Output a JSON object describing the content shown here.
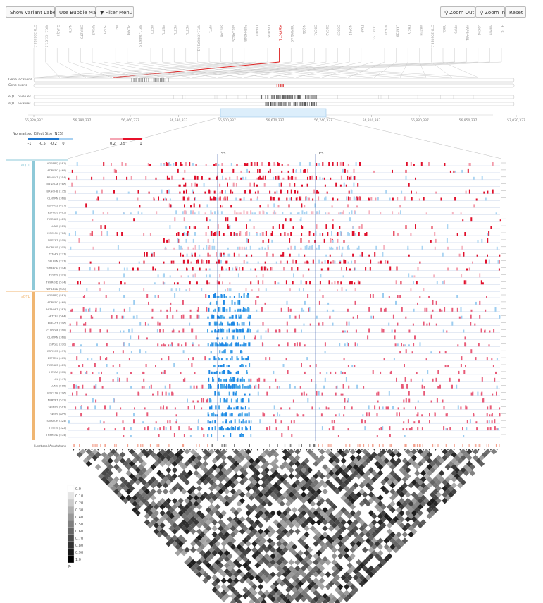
{
  "toolbar": {
    "show_variant_labels": "Show Variant Labels",
    "use_bubble_map": "Use Bubble Map",
    "filter_menu": "Filter Menu",
    "zoom_out": "Zoom Out",
    "zoom_in": "Zoom In",
    "reset": "Reset"
  },
  "gene_labels": [
    "CTD-3069B8.1",
    "RP11-421O7.1",
    "GNAQ3",
    "NAT8",
    "CBFA2T3",
    "RPSA3",
    "ISG23",
    "MFI",
    "PICAM",
    "RP11-368K1.9",
    "METTL",
    "METTL",
    "METTL",
    "METTL",
    "RP11-3986A16.1",
    "MFT1",
    "SLC7A6",
    "SLC7A6OS",
    "PLEKHG4B",
    "TRADD",
    "TRADDS",
    "RBPRY1",
    "RBPRY1-AS",
    "NQO1",
    "CDCA1",
    "CDCA2",
    "CCDC9",
    "NDP81",
    "TRAP",
    "CCDC153",
    "NDEP4",
    "LRRC29",
    "TMED",
    "MATKN",
    "CTD-3069B8.1",
    "RRCL",
    "MRPS",
    "MRPS-AS1",
    "LOC94",
    "RBPRY",
    "HTTC"
  ],
  "highlight_gene": "RBPRY1",
  "track_labels": [
    "Gene locations",
    "Gene exons",
    "eQTL p-values",
    "sQTL p-values"
  ],
  "coords": [
    "56,320,337",
    "56,390,337",
    "56,460,337",
    "56,530,337",
    "56,600,337",
    "56,670,337",
    "56,740,337",
    "56,810,337",
    "56,880,337",
    "56,950,337",
    "57,020,337"
  ],
  "legend": {
    "title": "Normalized Effect Size (NES)",
    "ticks": [
      "-1",
      "-0.5",
      "-0.2",
      "0",
      "0.2",
      "0.5",
      "1"
    ],
    "neg_color": "#1f78d1",
    "pos_color": "#e8102a"
  },
  "markers": {
    "tss": "TSS",
    "tes": "TES"
  },
  "eqtl": {
    "group_label": "eQTL",
    "color": "#8ec9d8",
    "rows": [
      "ADPSBQ (581)",
      "ADPVSC (469)",
      "BRNCHT (354)",
      "BRNCHA (286)",
      "BRNCHB (175)",
      "CLNTRN (368)",
      "ESPMCS (497)",
      "ESPMSL (465)",
      "FIBRBLS (483)",
      "LUNG (515)",
      "MSCLSK (706)",
      "NERVET (532)",
      "PNCREAS (305)",
      "PTTARY (237)",
      "SPLEEN (227)",
      "STMACH (324)",
      "TESTIS (322)",
      "THYROID (574)",
      "WHLBLD (670)"
    ]
  },
  "sqtl": {
    "group_label": "sQTL",
    "color": "#f0b672",
    "rows": [
      "ADPSBQ (581)",
      "ADPVSC (469)",
      "ARTAORT (387)",
      "ARTTBL (584)",
      "BREAST (396)",
      "CLNSGM (318)",
      "CLNTRN (368)",
      "ESPGEJ (330)",
      "ESPMCS (497)",
      "ESPMSL (465)",
      "FIBRBLS (483)",
      "HRTAA (372)",
      "LCL (147)",
      "LUNG (515)",
      "MSCLSK (706)",
      "NERVET (532)",
      "SKINNS (517)",
      "SKINS (605)",
      "STMACH (324)",
      "TESTIS (322)",
      "THYROID (574)"
    ]
  },
  "functional_annotations": "Functional Annotations",
  "ld_legend": {
    "values": [
      "0.0",
      "0.10",
      "0.20",
      "0.30",
      "0.40",
      "0.50",
      "0.60",
      "0.70",
      "0.80",
      "0.90",
      "1.0"
    ],
    "label": "R²"
  }
}
